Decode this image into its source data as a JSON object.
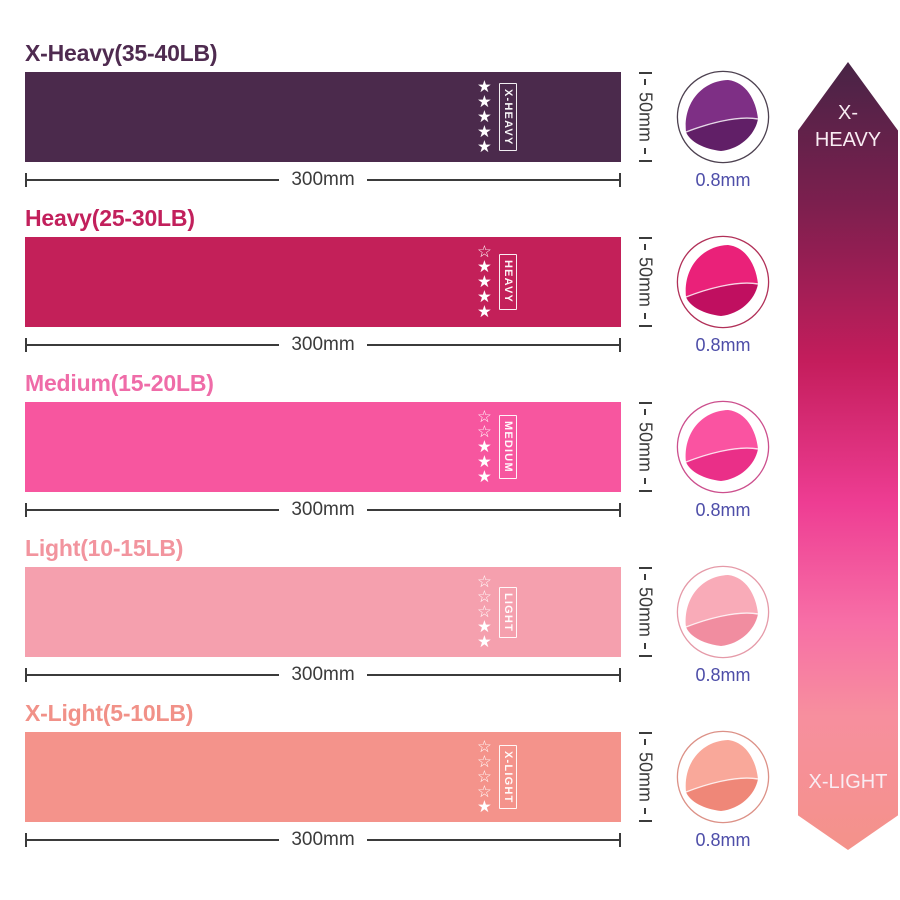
{
  "page": {
    "background": "#ffffff"
  },
  "rating_scale": 5,
  "dimensions": {
    "width_label": "300mm",
    "height_label": "50mm",
    "thickness_label": "0.8mm"
  },
  "colors": {
    "dimension_text": "#3b3b3b",
    "thickness_text": "#4d4da8",
    "star_color": "#ffffff"
  },
  "bands": [
    {
      "title": "X-Heavy(35-40LB)",
      "tag": "X-HEAVY",
      "stars_filled": 5,
      "band_color": "#4b2a4c",
      "title_color": "#4f2b50",
      "thumb_color": "#7e2f85",
      "thumb_fold_color": "#611f67",
      "thumb_ring_color": "#4d4150"
    },
    {
      "title": "Heavy(25-30LB)",
      "tag": "HEAVY",
      "stars_filled": 4,
      "band_color": "#c32059",
      "title_color": "#c2205c",
      "thumb_color": "#ea2179",
      "thumb_fold_color": "#c00f60",
      "thumb_ring_color": "#b13058"
    },
    {
      "title": "Medium(15-20LB)",
      "tag": "MEDIUM",
      "stars_filled": 3,
      "band_color": "#f7569f",
      "title_color": "#ef6ca8",
      "thumb_color": "#fa53a1",
      "thumb_fold_color": "#ea2f88",
      "thumb_ring_color": "#cc4f8d"
    },
    {
      "title": "Light(10-15LB)",
      "tag": "LIGHT",
      "stars_filled": 2,
      "band_color": "#f5a0ae",
      "title_color": "#f2949e",
      "thumb_color": "#f9abb8",
      "thumb_fold_color": "#f18da0",
      "thumb_ring_color": "#e59aa8"
    },
    {
      "title": "X-Light(5-10LB)",
      "tag": "X-LIGHT",
      "stars_filled": 1,
      "band_color": "#f4938b",
      "title_color": "#f19188",
      "thumb_color": "#f9a89a",
      "thumb_fold_color": "#ef8778",
      "thumb_ring_color": "#dc9187"
    }
  ],
  "scale_arrow": {
    "top_label": "X-HEAVY",
    "bottom_label": "X-LIGHT",
    "label_color": "#f9ecf3",
    "gradient_stops": [
      {
        "color": "#482446",
        "pos": 0
      },
      {
        "color": "#7c1f4e",
        "pos": 18
      },
      {
        "color": "#c41d5c",
        "pos": 38
      },
      {
        "color": "#ee3d93",
        "pos": 56
      },
      {
        "color": "#f76ea6",
        "pos": 71
      },
      {
        "color": "#f78f9e",
        "pos": 83
      },
      {
        "color": "#f4928a",
        "pos": 100
      }
    ]
  }
}
